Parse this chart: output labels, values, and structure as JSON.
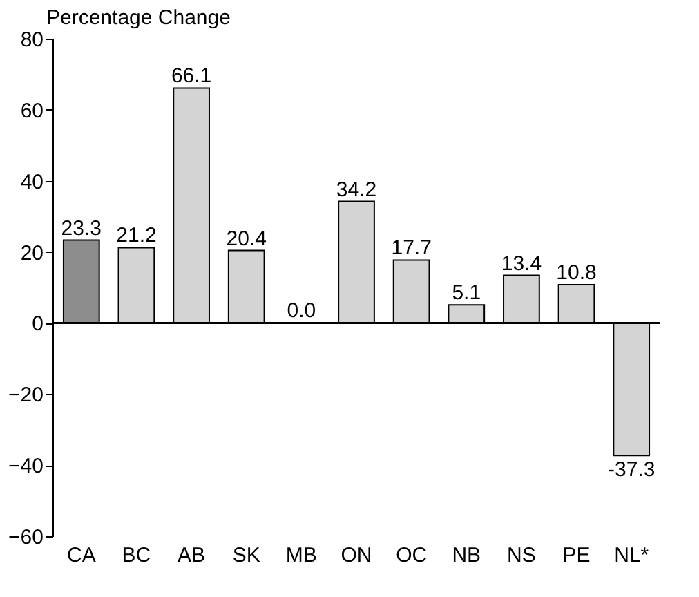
{
  "chart_data": {
    "type": "bar",
    "ylabel": "Percentage Change",
    "categories": [
      "CA",
      "BC",
      "AB",
      "SK",
      "MB",
      "ON",
      "OC",
      "NB",
      "NS",
      "PE",
      "NL*"
    ],
    "values": [
      23.3,
      21.2,
      66.1,
      20.4,
      0.0,
      34.2,
      17.7,
      5.1,
      13.4,
      10.8,
      -37.3
    ],
    "value_labels": [
      "23.3",
      "21.2",
      "66.1",
      "20.4",
      "0.0",
      "34.2",
      "17.7",
      "5.1",
      "13.4",
      "10.8",
      "-37.3"
    ],
    "colors": [
      "#8c8c8c",
      "#d4d4d4",
      "#d4d4d4",
      "#d4d4d4",
      "#000000",
      "#d4d4d4",
      "#d4d4d4",
      "#d4d4d4",
      "#d4d4d4",
      "#d4d4d4",
      "#d4d4d4"
    ],
    "ylim": [
      -60,
      80
    ],
    "yticks": [
      -60,
      -40,
      -20,
      0,
      20,
      40,
      60,
      80
    ],
    "grid": false,
    "ref_lines": [
      {
        "axis": "y",
        "value": 0
      }
    ]
  }
}
